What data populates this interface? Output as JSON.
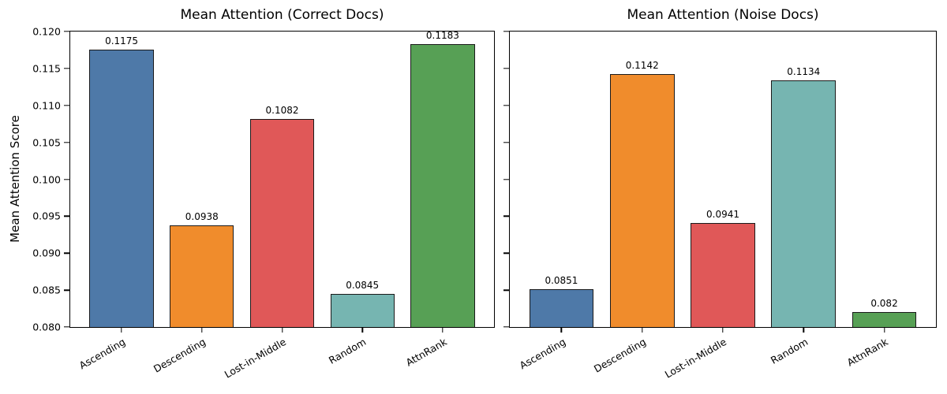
{
  "figure": {
    "background": "#ffffff",
    "text_color": "#000000"
  },
  "chart_data": [
    {
      "type": "bar",
      "title": "Mean Attention (Correct Docs)",
      "categories": [
        "Ascending",
        "Descending",
        "Lost-in-Middle",
        "Random",
        "AttnRank"
      ],
      "values": [
        0.1175,
        0.0938,
        0.1082,
        0.0845,
        0.1183
      ],
      "value_labels": [
        "0.1175",
        "0.0938",
        "0.1082",
        "0.0845",
        "0.1183"
      ],
      "bar_colors": [
        "#4e79a8",
        "#f08c2c",
        "#e05858",
        "#76b5b1",
        "#57a055"
      ],
      "bar_edge_color": "#1a1a1a",
      "xlabel": "",
      "ylabel": "Mean Attention Score",
      "ylim": [
        0.08,
        0.12
      ],
      "yticks": [
        0.08,
        0.085,
        0.09,
        0.095,
        0.1,
        0.105,
        0.11,
        0.115,
        0.12
      ],
      "ytick_labels": [
        "0.080",
        "0.085",
        "0.090",
        "0.095",
        "0.100",
        "0.105",
        "0.110",
        "0.115",
        "0.120"
      ],
      "show_ytick_labels": true,
      "xtick_rotation_deg": 30,
      "grid": false,
      "legend": null
    },
    {
      "type": "bar",
      "title": "Mean Attention (Noise Docs)",
      "categories": [
        "Ascending",
        "Descending",
        "Lost-in-Middle",
        "Random",
        "AttnRank"
      ],
      "values": [
        0.0851,
        0.1142,
        0.0941,
        0.1134,
        0.082
      ],
      "value_labels": [
        "0.0851",
        "0.1142",
        "0.0941",
        "0.1134",
        "0.082"
      ],
      "bar_colors": [
        "#4e79a8",
        "#f08c2c",
        "#e05858",
        "#76b5b1",
        "#57a055"
      ],
      "bar_edge_color": "#1a1a1a",
      "xlabel": "",
      "ylabel": "",
      "ylim": [
        0.08,
        0.12
      ],
      "yticks": [
        0.08,
        0.085,
        0.09,
        0.095,
        0.1,
        0.105,
        0.11,
        0.115,
        0.12
      ],
      "ytick_labels": [],
      "show_ytick_labels": false,
      "xtick_rotation_deg": 30,
      "grid": false,
      "legend": null
    }
  ]
}
